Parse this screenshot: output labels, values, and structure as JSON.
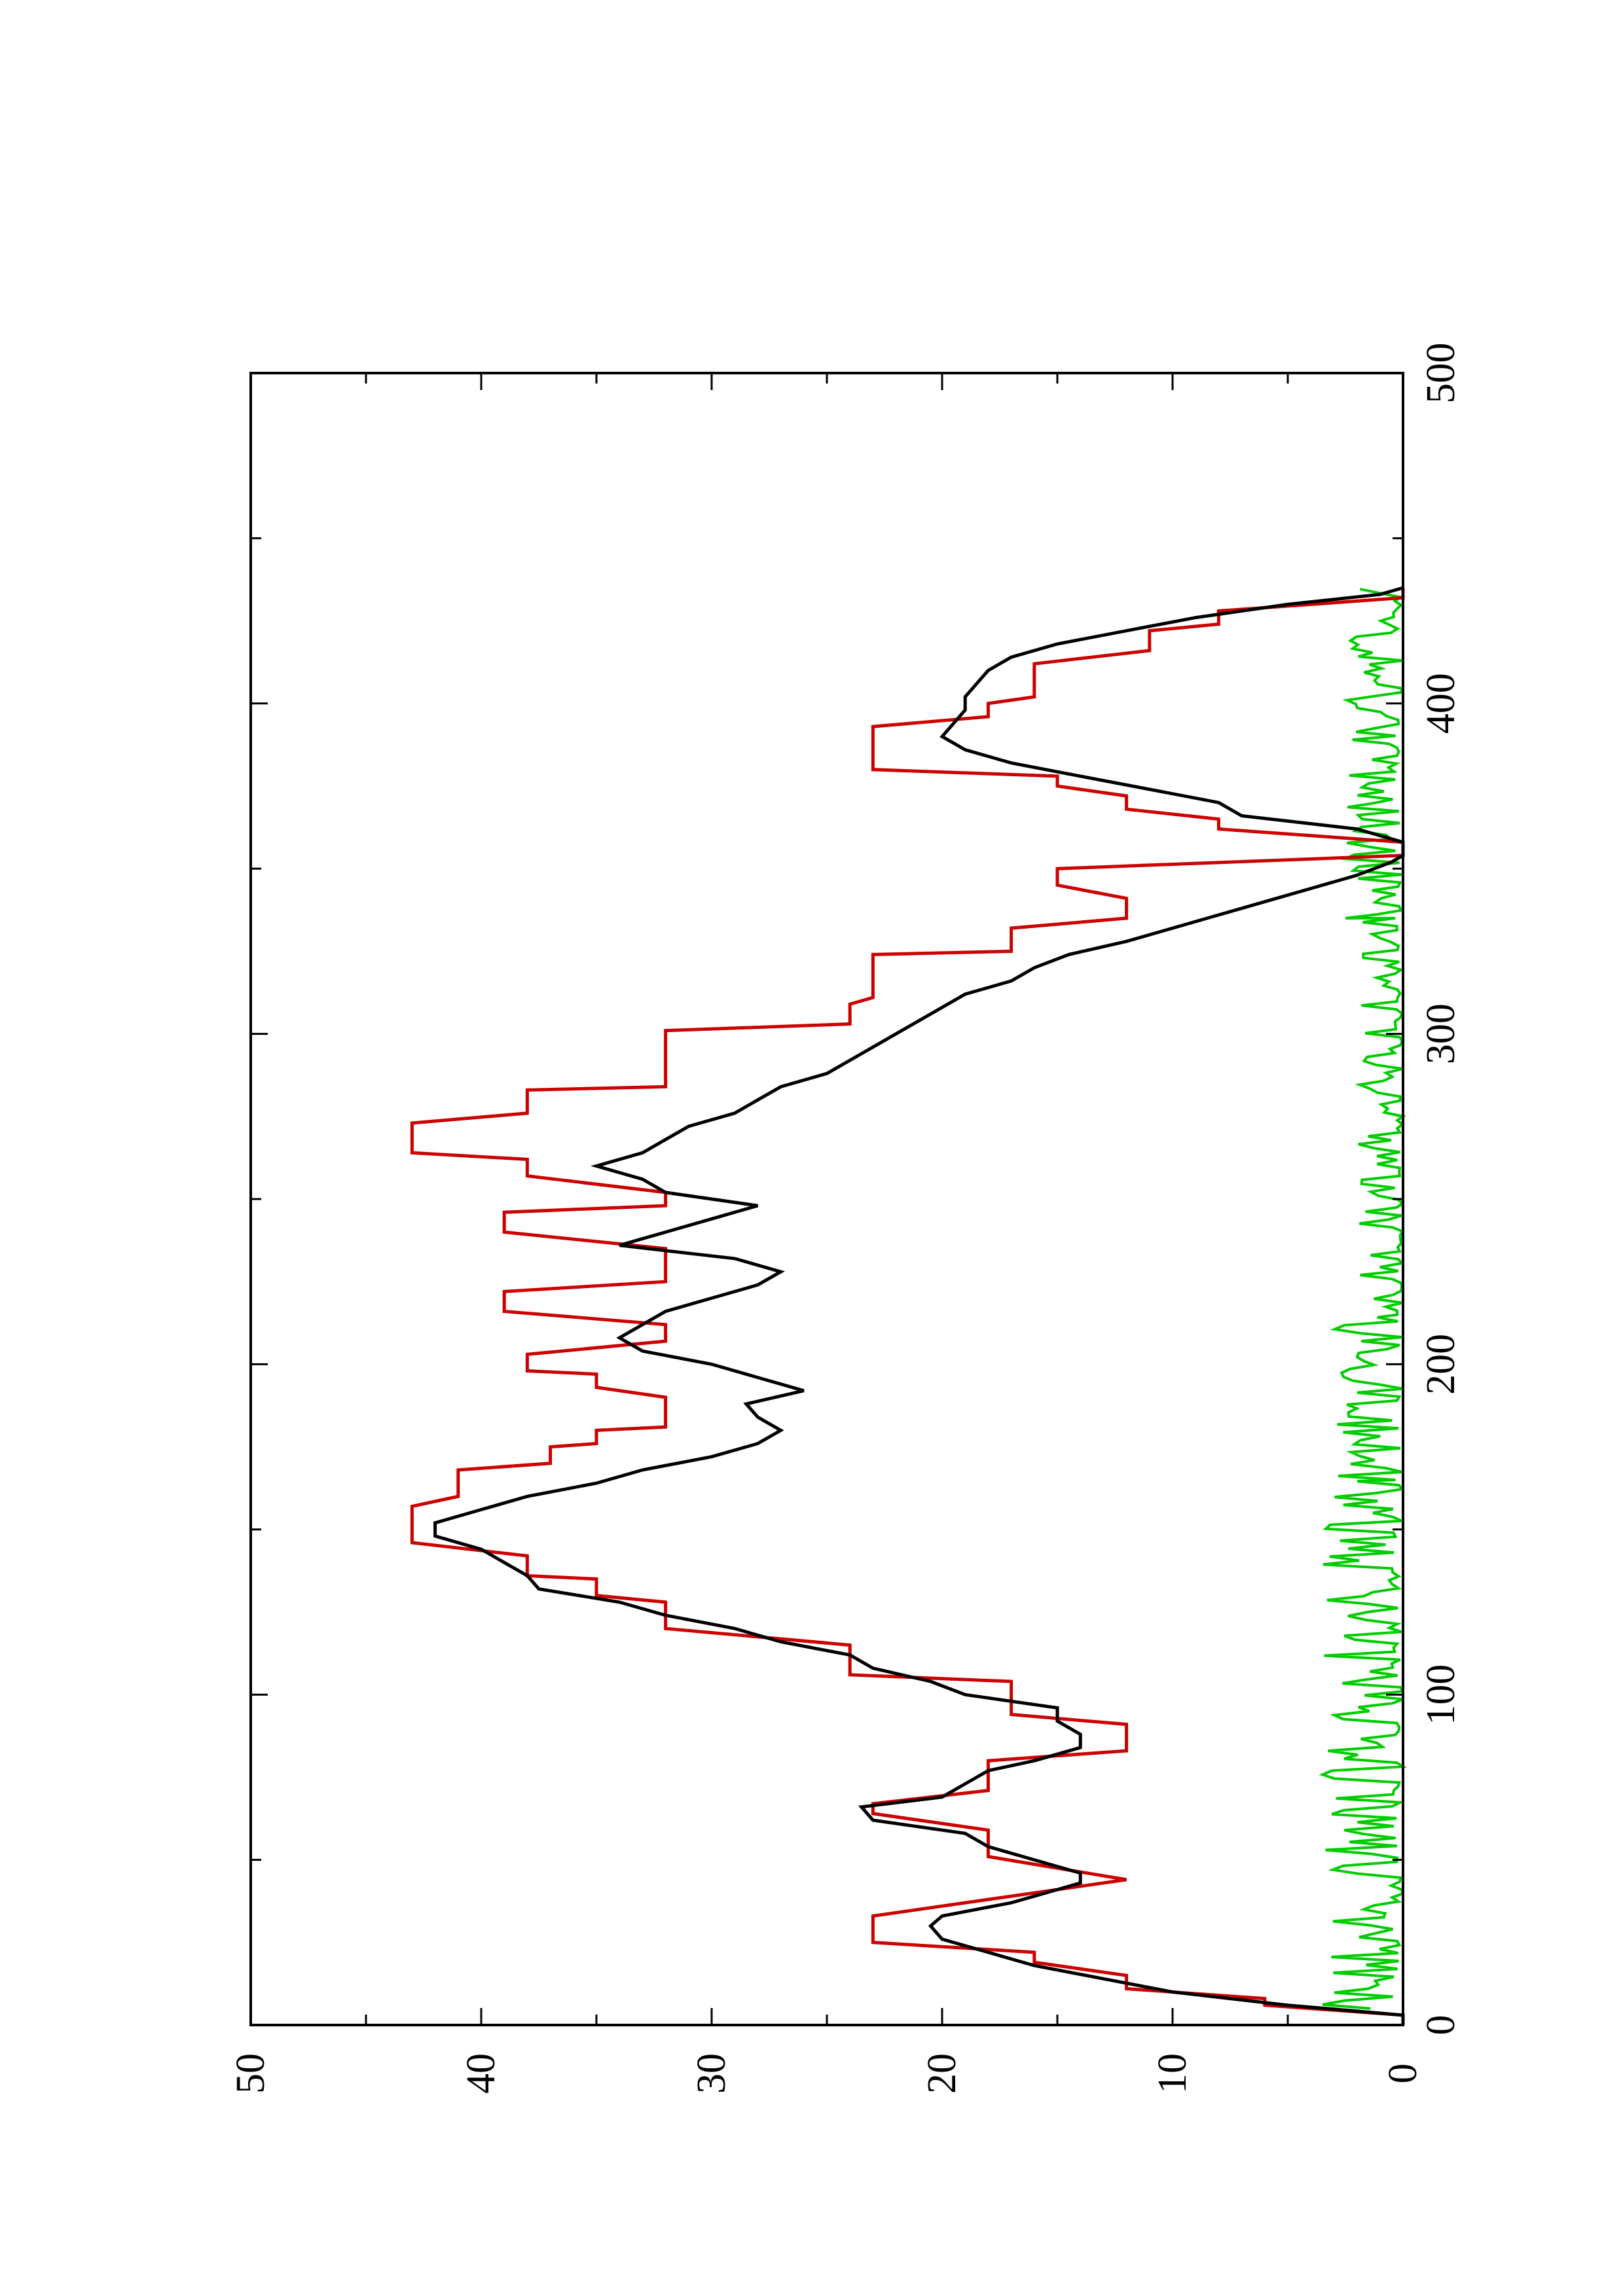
{
  "chart_data": {
    "type": "line",
    "title": "",
    "xlabel": "",
    "ylabel": "",
    "orientation": "rotated 90 degrees counter-clockwise (x axis runs bottom-to-top, y axis runs right-to-left)",
    "xlim": [
      0,
      500
    ],
    "ylim": [
      0,
      50
    ],
    "x_ticks": [
      "0",
      "100",
      "200",
      "300",
      "400",
      "500"
    ],
    "y_ticks": [
      "0",
      "10",
      "20",
      "30",
      "40",
      "50"
    ],
    "grid": false,
    "legend": "none",
    "series": [
      {
        "color": "#cc0000",
        "style": "step",
        "points": [
          [
            0,
            0
          ],
          [
            3,
            0
          ],
          [
            6,
            6
          ],
          [
            8,
            6
          ],
          [
            11,
            12
          ],
          [
            15,
            12
          ],
          [
            19,
            16
          ],
          [
            22,
            16
          ],
          [
            25,
            23
          ],
          [
            33,
            23
          ],
          [
            39,
            17
          ],
          [
            44,
            12
          ],
          [
            51,
            18
          ],
          [
            59,
            18
          ],
          [
            64,
            23
          ],
          [
            67,
            23
          ],
          [
            71,
            18
          ],
          [
            80,
            18
          ],
          [
            83,
            12
          ],
          [
            91,
            12
          ],
          [
            94,
            17
          ],
          [
            104,
            17
          ],
          [
            106,
            24
          ],
          [
            115,
            24
          ],
          [
            120,
            32
          ],
          [
            128,
            32
          ],
          [
            130,
            35
          ],
          [
            135,
            35
          ],
          [
            136,
            38
          ],
          [
            142,
            38
          ],
          [
            146,
            43
          ],
          [
            157,
            43
          ],
          [
            160,
            41
          ],
          [
            168,
            41
          ],
          [
            170,
            37
          ],
          [
            175,
            37
          ],
          [
            176,
            35
          ],
          [
            180,
            35
          ],
          [
            181,
            32
          ],
          [
            190,
            32
          ],
          [
            193,
            35
          ],
          [
            197,
            35
          ],
          [
            198,
            38
          ],
          [
            203,
            38
          ],
          [
            207,
            32
          ],
          [
            212,
            32
          ],
          [
            216,
            39
          ],
          [
            222,
            39
          ],
          [
            225,
            32
          ],
          [
            235,
            32
          ],
          [
            240,
            39
          ],
          [
            246,
            39
          ],
          [
            248,
            32
          ],
          [
            252,
            32
          ],
          [
            257,
            38
          ],
          [
            262,
            38
          ],
          [
            264,
            43
          ],
          [
            273,
            43
          ],
          [
            276,
            38
          ],
          [
            283,
            38
          ],
          [
            284,
            32
          ],
          [
            301,
            32
          ],
          [
            303,
            24
          ],
          [
            309,
            24
          ],
          [
            311,
            23
          ],
          [
            324,
            23
          ],
          [
            325,
            17
          ],
          [
            332,
            17
          ],
          [
            335,
            12
          ],
          [
            341,
            12
          ],
          [
            345,
            15
          ],
          [
            350,
            15
          ],
          [
            354,
            0
          ],
          [
            358,
            0
          ],
          [
            362,
            8
          ],
          [
            365,
            8
          ],
          [
            368,
            12
          ],
          [
            372,
            12
          ],
          [
            375,
            15
          ],
          [
            378,
            15
          ],
          [
            380,
            23
          ],
          [
            393,
            23
          ],
          [
            396,
            18
          ],
          [
            400,
            18
          ],
          [
            402,
            16
          ],
          [
            412,
            16
          ],
          [
            416,
            11
          ],
          [
            422,
            11
          ],
          [
            424,
            8
          ],
          [
            428,
            8
          ],
          [
            432,
            0
          ],
          [
            435,
            0
          ]
        ]
      },
      {
        "color": "#000000",
        "style": "line",
        "points": [
          [
            0,
            0
          ],
          [
            3,
            0
          ],
          [
            6,
            5
          ],
          [
            10,
            10
          ],
          [
            14,
            13
          ],
          [
            18,
            16
          ],
          [
            22,
            18
          ],
          [
            26,
            20
          ],
          [
            30,
            20.5
          ],
          [
            33,
            20
          ],
          [
            37,
            17
          ],
          [
            40,
            15.5
          ],
          [
            43,
            14
          ],
          [
            46,
            14
          ],
          [
            50,
            16
          ],
          [
            54,
            18
          ],
          [
            58,
            19
          ],
          [
            62,
            23
          ],
          [
            66,
            23.5
          ],
          [
            69,
            20
          ],
          [
            73,
            19
          ],
          [
            77,
            18
          ],
          [
            80,
            16
          ],
          [
            84,
            14
          ],
          [
            88,
            14
          ],
          [
            92,
            15
          ],
          [
            96,
            15
          ],
          [
            100,
            19
          ],
          [
            104,
            20.5
          ],
          [
            108,
            23
          ],
          [
            112,
            24
          ],
          [
            116,
            27
          ],
          [
            120,
            29
          ],
          [
            124,
            32
          ],
          [
            128,
            34
          ],
          [
            132,
            37.5
          ],
          [
            136,
            38
          ],
          [
            140,
            39
          ],
          [
            144,
            40
          ],
          [
            148,
            42
          ],
          [
            152,
            42
          ],
          [
            156,
            40
          ],
          [
            160,
            38
          ],
          [
            164,
            35
          ],
          [
            168,
            33
          ],
          [
            172,
            30
          ],
          [
            176,
            28
          ],
          [
            180,
            27
          ],
          [
            184,
            28
          ],
          [
            188,
            28.5
          ],
          [
            192,
            26
          ],
          [
            196,
            28
          ],
          [
            200,
            30
          ],
          [
            204,
            33
          ],
          [
            208,
            34
          ],
          [
            212,
            33
          ],
          [
            216,
            32
          ],
          [
            220,
            30
          ],
          [
            224,
            28
          ],
          [
            228,
            27
          ],
          [
            232,
            29
          ],
          [
            236,
            34
          ],
          [
            240,
            32
          ],
          [
            244,
            30
          ],
          [
            248,
            28
          ],
          [
            252,
            32
          ],
          [
            256,
            33
          ],
          [
            260,
            35
          ],
          [
            264,
            33
          ],
          [
            268,
            32
          ],
          [
            272,
            31
          ],
          [
            276,
            29
          ],
          [
            280,
            28
          ],
          [
            284,
            27
          ],
          [
            288,
            25
          ],
          [
            292,
            24
          ],
          [
            296,
            23
          ],
          [
            300,
            22
          ],
          [
            304,
            21
          ],
          [
            308,
            20
          ],
          [
            312,
            19
          ],
          [
            316,
            17
          ],
          [
            320,
            16
          ],
          [
            324,
            14.5
          ],
          [
            328,
            12
          ],
          [
            332,
            10
          ],
          [
            336,
            8
          ],
          [
            340,
            6
          ],
          [
            344,
            4
          ],
          [
            348,
            2
          ],
          [
            352,
            0.5
          ],
          [
            354,
            0
          ],
          [
            358,
            0
          ],
          [
            362,
            2
          ],
          [
            366,
            7
          ],
          [
            370,
            8
          ],
          [
            374,
            11
          ],
          [
            378,
            14
          ],
          [
            382,
            17
          ],
          [
            386,
            19
          ],
          [
            390,
            20
          ],
          [
            394,
            19.5
          ],
          [
            398,
            19
          ],
          [
            402,
            19
          ],
          [
            406,
            18.5
          ],
          [
            410,
            18
          ],
          [
            414,
            17
          ],
          [
            418,
            15
          ],
          [
            422,
            12
          ],
          [
            426,
            9
          ],
          [
            430,
            5
          ],
          [
            433,
            1
          ],
          [
            435,
            0
          ]
        ]
      },
      {
        "color": "#00cc00",
        "style": "noisy",
        "segments": [
          {
            "x": [
              5,
              165
            ],
            "baseline": 0.5,
            "peak": 3.5
          },
          {
            "x": [
              165,
              215
            ],
            "baseline": 1.0,
            "peak": 3.0
          },
          {
            "x": [
              215,
              335
            ],
            "baseline": 0.3,
            "peak": 2.0
          },
          {
            "x": [
              335,
              435
            ],
            "baseline": 0.5,
            "peak": 2.5
          }
        ]
      }
    ]
  }
}
